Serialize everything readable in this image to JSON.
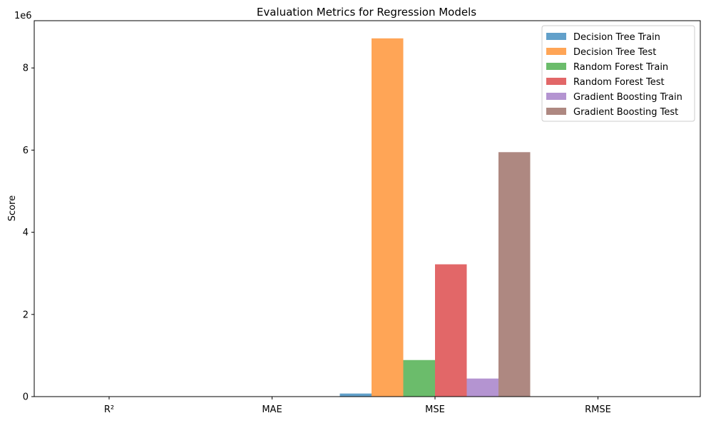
{
  "chart_data": {
    "type": "bar",
    "title": "Evaluation Metrics for Regression Models",
    "xlabel": "",
    "ylabel": "Score",
    "offset_text": "1e6",
    "categories": [
      "R²",
      "MAE",
      "MSE",
      "RMSE"
    ],
    "y_ticks": [
      0,
      2,
      4,
      6,
      8
    ],
    "ylim": [
      0,
      9150000
    ],
    "grid": false,
    "legend_position": "top-right",
    "bar_opacity": 0.7,
    "series": [
      {
        "name": "Decision Tree Train",
        "color": "#1f77b4",
        "values": [
          1,
          25,
          75000,
          270
        ]
      },
      {
        "name": "Decision Tree Test",
        "color": "#ff7f0e",
        "values": [
          0.75,
          1650,
          8720000,
          2950
        ]
      },
      {
        "name": "Random Forest Train",
        "color": "#2ca02c",
        "values": [
          0.97,
          540,
          890000,
          945
        ]
      },
      {
        "name": "Random Forest Test",
        "color": "#d62728",
        "values": [
          0.91,
          1000,
          3220000,
          1795
        ]
      },
      {
        "name": "Gradient Boosting Train",
        "color": "#9467bd",
        "values": [
          0.98,
          430,
          440000,
          665
        ]
      },
      {
        "name": "Gradient Boosting Test",
        "color": "#8c564b",
        "values": [
          0.83,
          1400,
          5950000,
          2440
        ]
      }
    ]
  }
}
